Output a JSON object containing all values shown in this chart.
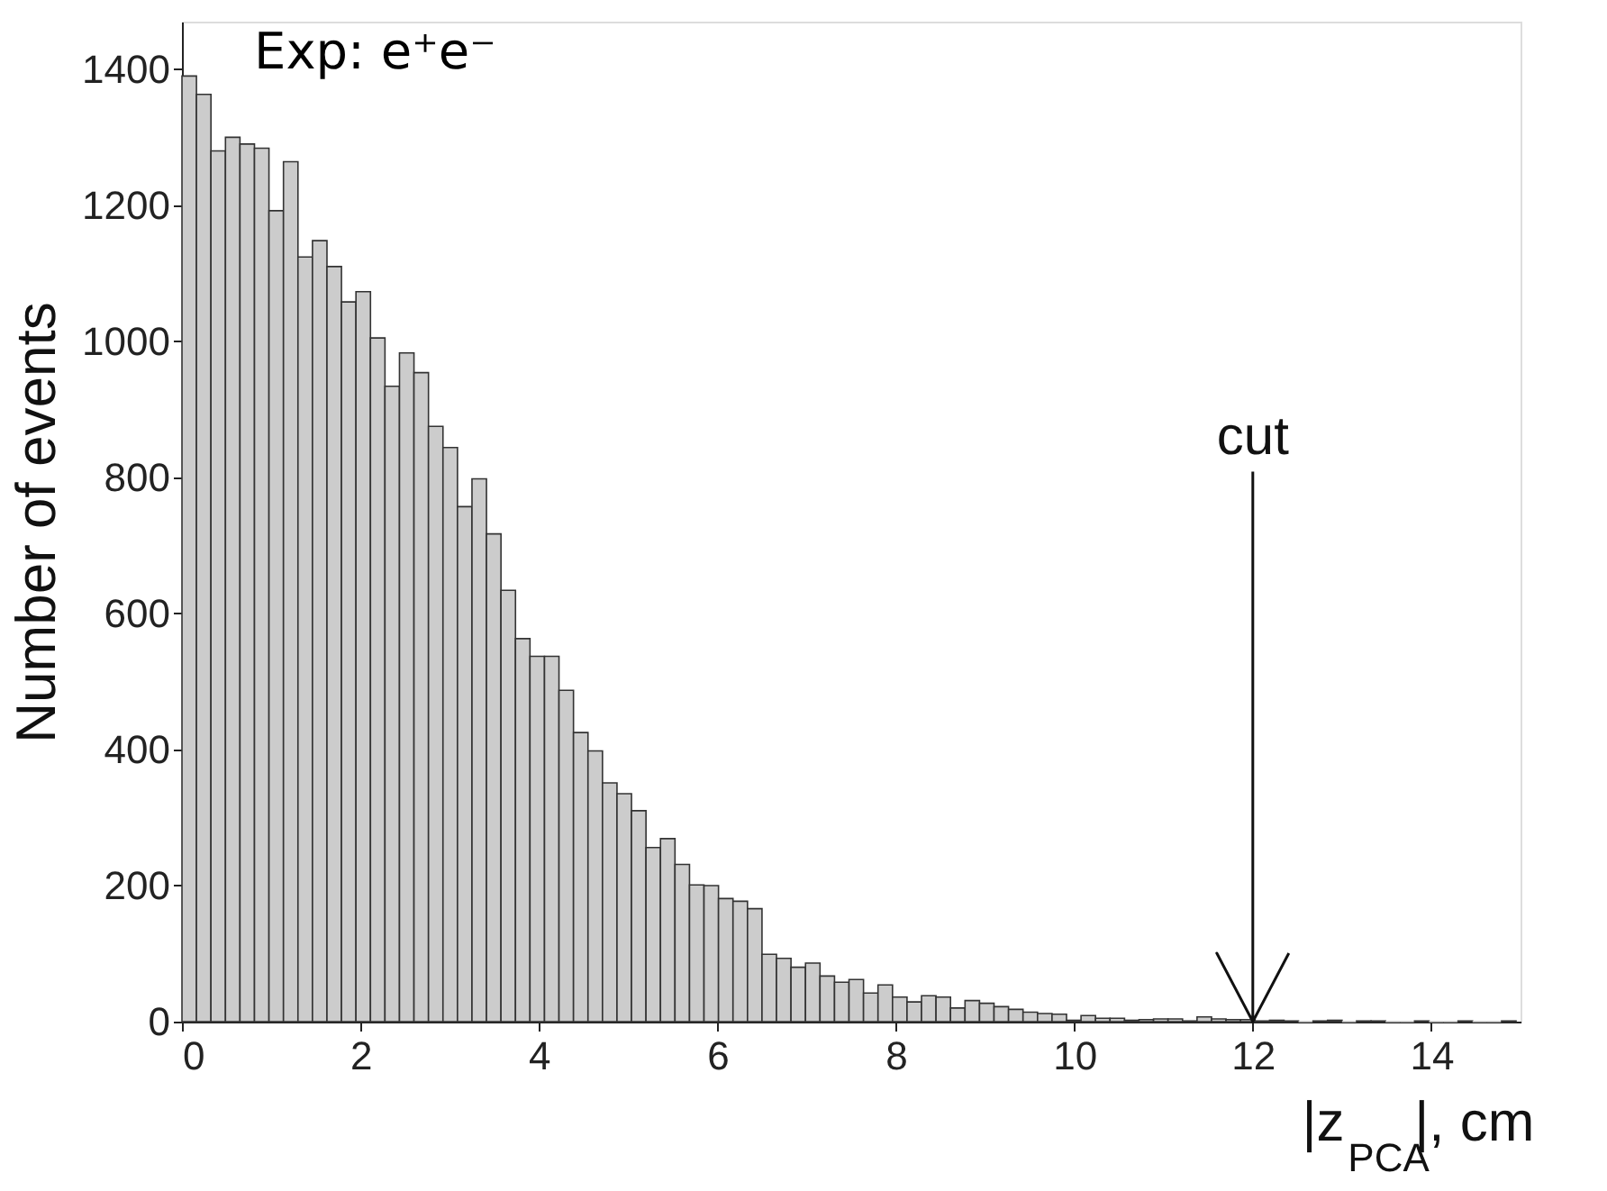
{
  "chart_data": {
    "type": "histogram",
    "xlabel": "|z$_{PCA}$|, cm",
    "ylabel": "Number of events",
    "annotations": [
      "Exp: e⁺e⁻"
    ],
    "bins": [
      0,
      0.1625,
      0.325,
      0.4875,
      0.65,
      0.8125,
      0.975,
      1.1375,
      1.3,
      1.4625,
      1.625,
      1.7875,
      1.95,
      2.1125,
      2.275,
      2.4375,
      2.6,
      2.7625,
      2.925,
      3.0875,
      3.25,
      3.4125,
      3.575,
      3.7375,
      3.9,
      4.0625,
      4.225,
      4.3875,
      4.55,
      4.7125,
      4.875,
      5.0375,
      5.2,
      5.3625,
      5.525,
      5.6875,
      5.85,
      6.0125,
      6.175,
      6.3375,
      6.5,
      6.6625,
      6.825,
      6.9875,
      7.15,
      7.3125,
      7.475,
      7.6375,
      7.8,
      7.9625,
      8.125,
      8.2875,
      8.45,
      8.6125,
      8.775,
      8.9375,
      9.1,
      9.2625,
      9.425,
      9.5875,
      9.75,
      9.9125,
      10.075,
      10.2375,
      10.4,
      10.5625,
      10.725,
      10.8875,
      11.05,
      11.2125,
      11.375,
      11.5375,
      11.7,
      11.8625,
      12.025,
      12.1875,
      12.35,
      12.5125,
      12.675,
      12.8375,
      13.0,
      13.1625,
      13.325,
      13.4875,
      13.65,
      13.8125,
      13.975,
      14.1375,
      14.3,
      14.4625,
      14.625,
      14.7875,
      14.95
    ],
    "values": [
      1390,
      1363,
      1280,
      1300,
      1290,
      1284,
      1192,
      1264,
      1124,
      1148,
      1110,
      1058,
      1073,
      1005,
      934,
      983,
      954,
      875,
      844,
      757,
      798,
      717,
      634,
      563,
      537,
      537,
      487,
      425,
      398,
      351,
      335,
      310,
      256,
      269,
      231,
      201,
      200,
      181,
      177,
      166,
      99,
      93,
      80,
      86,
      67,
      58,
      62,
      42,
      54,
      36,
      29,
      38,
      36,
      20,
      31,
      27,
      22,
      18,
      14,
      12,
      11,
      2,
      9,
      5,
      5,
      2,
      3,
      4,
      4,
      1,
      7,
      4,
      3,
      3,
      1,
      2,
      1,
      0,
      1,
      2,
      0,
      1,
      1,
      0,
      0,
      1,
      0,
      0,
      1,
      0,
      0,
      1
    ],
    "color": "#cccccc",
    "xlim": [
      0,
      15
    ],
    "xticks": [
      0,
      2,
      4,
      6,
      8,
      10,
      12,
      14
    ],
    "ylim": [
      0,
      1470
    ],
    "yticks": [
      0,
      200,
      400,
      600,
      800,
      1000,
      1200,
      1400
    ],
    "ref_lines": [
      {
        "axis": "x",
        "value": 12,
        "label": "cut"
      }
    ],
    "grid": false
  }
}
